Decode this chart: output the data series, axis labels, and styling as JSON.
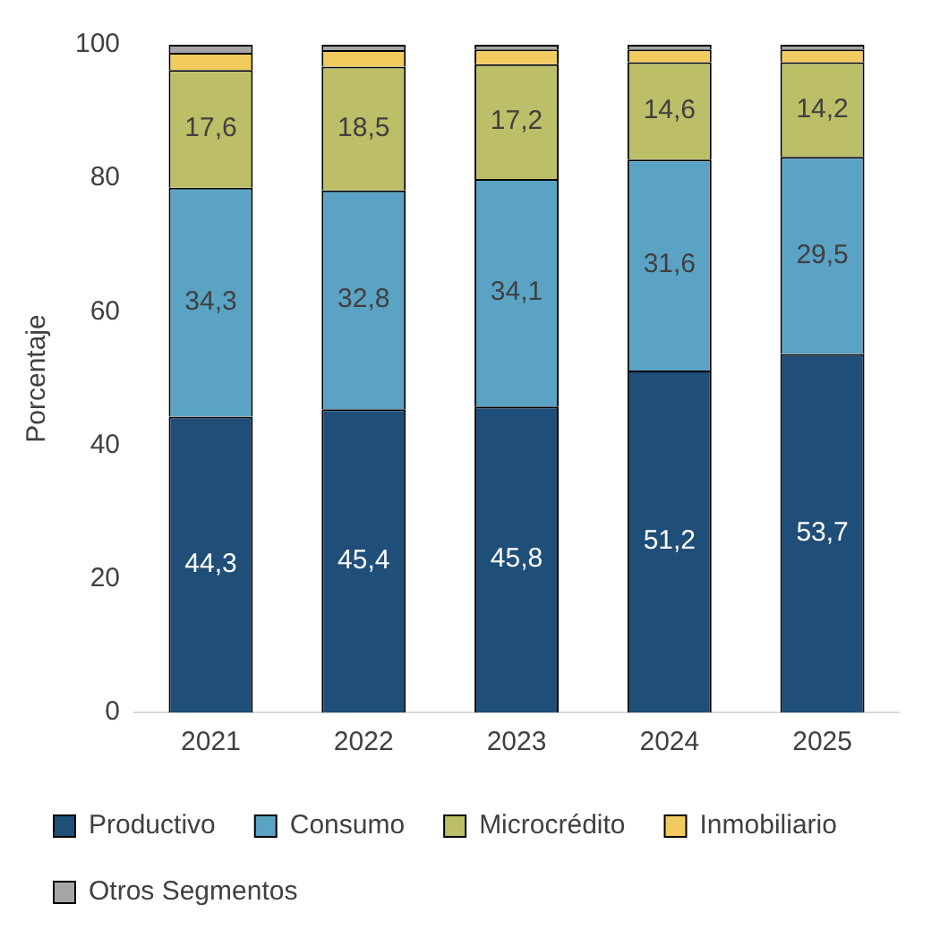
{
  "chart_data": {
    "type": "bar",
    "stacked": true,
    "ylabel": "Porcentaje",
    "categories": [
      "2021",
      "2022",
      "2023",
      "2024",
      "2025"
    ],
    "ylim": [
      0,
      100
    ],
    "yticks": [
      0,
      20,
      40,
      60,
      80,
      100
    ],
    "grid": false,
    "legend": "bottom",
    "series": [
      {
        "name": "Productivo",
        "color": "#1f4e79",
        "values": [
          44.3,
          45.4,
          45.8,
          51.2,
          53.7
        ],
        "value_labels": [
          "44,3",
          "45,4",
          "45,8",
          "51,2",
          "53,7"
        ]
      },
      {
        "name": "Consumo",
        "color": "#5ba3c4",
        "values": [
          34.3,
          32.8,
          34.1,
          31.6,
          29.5
        ],
        "value_labels": [
          "34,3",
          "32,8",
          "34,1",
          "31,6",
          "29,5"
        ]
      },
      {
        "name": "Microcrédito",
        "color": "#bcbf67",
        "values": [
          17.6,
          18.5,
          17.2,
          14.6,
          14.2
        ],
        "value_labels": [
          "17,6",
          "18,5",
          "17,2",
          "14,6",
          "14,2"
        ]
      },
      {
        "name": "Inmobiliario",
        "color": "#f2cb5f",
        "values": [
          2.6,
          2.5,
          2.2,
          1.9,
          1.9
        ]
      },
      {
        "name": "Otros Segmentos",
        "color": "#a6a6a6",
        "values": [
          1.2,
          0.8,
          0.7,
          0.7,
          0.7
        ]
      }
    ]
  }
}
